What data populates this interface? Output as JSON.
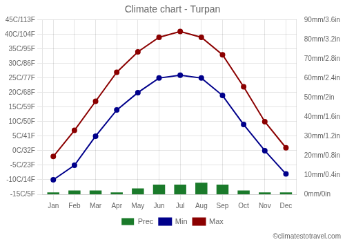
{
  "chart_data": {
    "type": "bar",
    "title": "Climate chart - Turpan",
    "annotations": [
      "©climatestotravel.com"
    ],
    "categories": [
      "Jan",
      "Feb",
      "Mar",
      "Apr",
      "May",
      "Jun",
      "Jul",
      "Aug",
      "Sep",
      "Oct",
      "Nov",
      "Dec"
    ],
    "series": [
      {
        "name": "Prec",
        "type": "bar",
        "axis": "y2",
        "color": "#1a7a2a",
        "values": [
          1,
          2,
          2,
          1,
          3,
          5,
          5,
          6,
          5,
          2,
          1,
          1
        ]
      },
      {
        "name": "Min",
        "type": "line",
        "marker": "circle",
        "line_style": "solid",
        "color": "#00008B",
        "values": [
          -10,
          -5,
          5,
          14,
          20,
          25,
          26,
          25,
          19,
          9,
          0,
          -8
        ]
      },
      {
        "name": "Max",
        "type": "line",
        "marker": "circle",
        "line_style": "solid",
        "color": "#8B0000",
        "values": [
          -2,
          7,
          17,
          27,
          34,
          39,
          41,
          39,
          33,
          22,
          10,
          1
        ]
      }
    ],
    "ylim": [
      -15,
      45
    ],
    "yticks": [
      {
        "value": -15,
        "label": "-15C/5F"
      },
      {
        "value": -10,
        "label": "-10C/14F"
      },
      {
        "value": -5,
        "label": "-5C/23F"
      },
      {
        "value": 0,
        "label": "0C/32F"
      },
      {
        "value": 5,
        "label": "5C/41F"
      },
      {
        "value": 10,
        "label": "10C/50F"
      },
      {
        "value": 15,
        "label": "15C/59F"
      },
      {
        "value": 20,
        "label": "20C/68F"
      },
      {
        "value": 25,
        "label": "25C/77F"
      },
      {
        "value": 30,
        "label": "30C/86F"
      },
      {
        "value": 35,
        "label": "35C/95F"
      },
      {
        "value": 40,
        "label": "40C/104F"
      },
      {
        "value": 45,
        "label": "45C/113F"
      }
    ],
    "y2lim": [
      0,
      90
    ],
    "y2ticks": [
      {
        "value": 0,
        "label": "0mm/0in"
      },
      {
        "value": 10,
        "label": "10mm/0.4in"
      },
      {
        "value": 20,
        "label": "20mm/0.8in"
      },
      {
        "value": 30,
        "label": "30mm/1.2in"
      },
      {
        "value": 40,
        "label": "40mm/1.6in"
      },
      {
        "value": 50,
        "label": "50mm/2in"
      },
      {
        "value": 60,
        "label": "60mm/2.4in"
      },
      {
        "value": 70,
        "label": "70mm/2.8in"
      },
      {
        "value": 80,
        "label": "80mm/3.2in"
      },
      {
        "value": 90,
        "label": "90mm/3.6in"
      }
    ],
    "grid": true,
    "legend": "bottom"
  }
}
